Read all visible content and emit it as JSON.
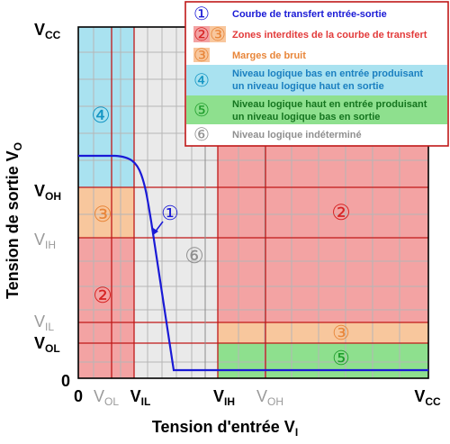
{
  "colors": {
    "red_zone": "#f3a3a3",
    "cyan_zone": "#a9e2f0",
    "orange_zone": "#f8c79d",
    "green_zone": "#8ee08e",
    "gray_zone": "#eaeaea",
    "grid_line": "#b6b6b6",
    "boundary_line": "#c01818",
    "curve": "#1a1ad6",
    "legend_border": "#c01818"
  },
  "axes": {
    "y_title": "Tension de sortie V",
    "y_title_sub": "O",
    "x_title": "Tension d'entrée V",
    "x_title_sub": "I",
    "x_ticks": [
      {
        "main": "0",
        "sub": ""
      },
      {
        "main": "V",
        "sub": "OL"
      },
      {
        "main": "V",
        "sub": "IL"
      },
      {
        "main": "V",
        "sub": "IH"
      },
      {
        "main": "V",
        "sub": "OH"
      },
      {
        "main": "V",
        "sub": "CC"
      }
    ],
    "y_ticks": [
      {
        "main": "V",
        "sub": "CC"
      },
      {
        "main": "V",
        "sub": "OH"
      },
      {
        "main": "V",
        "sub": "IH"
      },
      {
        "main": "V",
        "sub": "IL"
      },
      {
        "main": "V",
        "sub": "OL"
      },
      {
        "main": "0",
        "sub": ""
      }
    ]
  },
  "zone_markers": {
    "cyan": "④",
    "orange_left": "③",
    "red_left": "②",
    "gray": "⑥",
    "red_right": "②",
    "orange_right": "③",
    "green": "⑤",
    "curve": "①"
  },
  "legend": {
    "items": [
      {
        "markers": [
          "①"
        ],
        "text": [
          "Courbe de transfert entrée-sortie"
        ]
      },
      {
        "markers": [
          "②",
          "③"
        ],
        "text": [
          "Zones interdites de la courbe de transfert"
        ]
      },
      {
        "markers": [
          "③"
        ],
        "text": [
          "Marges de bruit"
        ]
      },
      {
        "markers": [
          "④"
        ],
        "text": [
          "Niveau logique bas en entrée produisant",
          "un niveau logique haut en sortie"
        ]
      },
      {
        "markers": [
          "⑤"
        ],
        "text": [
          "Niveau logique haut en entrée produisant",
          "un niveau logique bas en sortie"
        ]
      },
      {
        "markers": [
          "⑥"
        ],
        "text": [
          "Niveau logique indéterminé"
        ]
      }
    ]
  }
}
